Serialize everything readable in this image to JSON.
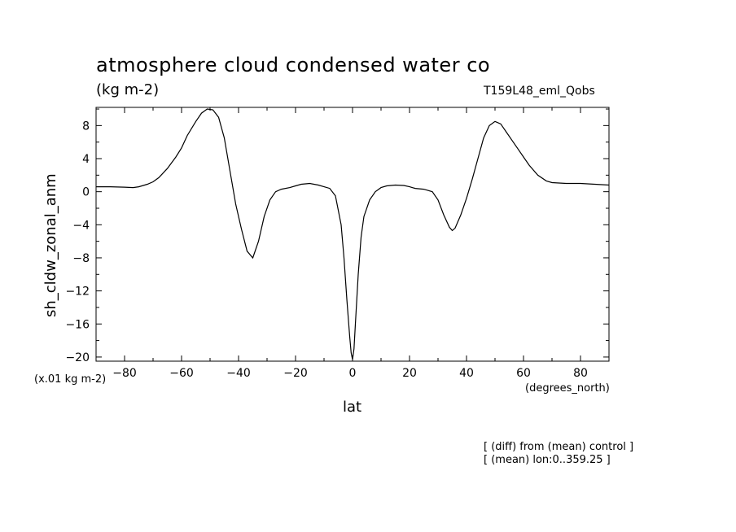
{
  "chart_data": {
    "type": "line",
    "title": "atmosphere cloud condensed water co",
    "subtitle": "(kg m-2)",
    "run_label": "T159L48_eml_Qobs",
    "ylabel": "sh_cldw_zonal_anm",
    "xlabel": "lat",
    "x_units_label": "(degrees_north)",
    "y_scale_note": "(x.01 kg m-2)",
    "notes": [
      "[ (diff) from (mean) control ]",
      "[ (mean) lon:0..359.25 ]"
    ],
    "xlim": [
      -90,
      90
    ],
    "ylim": [
      -20.5,
      10.2
    ],
    "xticks": [
      -80,
      -60,
      -40,
      -20,
      0,
      20,
      40,
      60,
      80
    ],
    "yticks": [
      -20,
      -16,
      -12,
      -8,
      -4,
      0,
      4,
      8
    ],
    "grid": false,
    "series": [
      {
        "x": [
          -90,
          -85,
          -80,
          -77,
          -75,
          -72,
          -70,
          -68,
          -65,
          -62,
          -60,
          -58,
          -55,
          -53,
          -51,
          -49,
          -47,
          -45,
          -43,
          -41,
          -39,
          -37,
          -35,
          -33,
          -31,
          -29,
          -27,
          -25,
          -22,
          -20,
          -18,
          -15,
          -12,
          -10,
          -8,
          -6,
          -4,
          -3,
          -2,
          -1,
          -0.5,
          0,
          0.5,
          1,
          2,
          3,
          4,
          6,
          8,
          10,
          12,
          15,
          18,
          20,
          22,
          25,
          28,
          30,
          32,
          34,
          35,
          36,
          38,
          40,
          42,
          44,
          46,
          48,
          50,
          52,
          54,
          56,
          58,
          60,
          62,
          65,
          68,
          70,
          75,
          80,
          85,
          90
        ],
        "y": [
          0.6,
          0.6,
          0.55,
          0.5,
          0.6,
          0.9,
          1.2,
          1.7,
          2.8,
          4.2,
          5.3,
          6.8,
          8.5,
          9.5,
          10.0,
          9.9,
          9.0,
          6.5,
          2.5,
          -1.5,
          -4.5,
          -7.2,
          -8.0,
          -6.0,
          -3.0,
          -1.0,
          0.0,
          0.3,
          0.5,
          0.7,
          0.9,
          1.0,
          0.8,
          0.6,
          0.4,
          -0.5,
          -4.0,
          -8.0,
          -13.0,
          -17.5,
          -19.5,
          -20.3,
          -19.0,
          -16.0,
          -10.0,
          -5.5,
          -3.0,
          -1.0,
          0.0,
          0.5,
          0.7,
          0.8,
          0.75,
          0.6,
          0.4,
          0.3,
          0.0,
          -1.0,
          -2.8,
          -4.3,
          -4.7,
          -4.4,
          -2.8,
          -0.8,
          1.5,
          4.0,
          6.5,
          8.0,
          8.5,
          8.2,
          7.2,
          6.2,
          5.2,
          4.2,
          3.2,
          2.0,
          1.3,
          1.1,
          1.0,
          1.0,
          0.9,
          0.8
        ]
      }
    ]
  }
}
